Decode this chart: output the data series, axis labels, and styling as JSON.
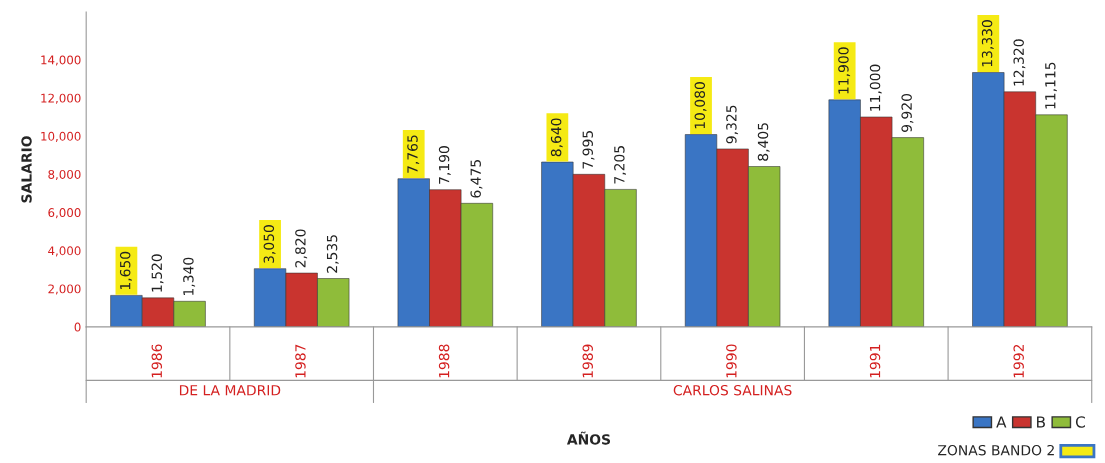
{
  "chart_data": {
    "type": "bar",
    "xlabel": "AÑOS",
    "ylabel": "SALARIO",
    "categories": [
      "1986",
      "1987",
      "1988",
      "1989",
      "1990",
      "1991",
      "1992"
    ],
    "series": [
      {
        "name": "A",
        "color": "#3a75c4",
        "values": [
          1650,
          3050,
          7765,
          8640,
          10080,
          11900,
          13330
        ],
        "value_labels": [
          "1,650",
          "3,050",
          "7,765",
          "8,640",
          "10,080",
          "11,900",
          "13,330"
        ]
      },
      {
        "name": "B",
        "color": "#c9342f",
        "values": [
          1520,
          2820,
          7190,
          7995,
          9325,
          11000,
          12320
        ],
        "value_labels": [
          "1,520",
          "2,820",
          "7,190",
          "7,995",
          "9,325",
          "11,000",
          "12,320"
        ]
      },
      {
        "name": "C",
        "color": "#8fbc3a",
        "values": [
          1340,
          2535,
          6475,
          7205,
          8405,
          9920,
          11115
        ],
        "value_labels": [
          "1,340",
          "2,535",
          "6,475",
          "7,205",
          "8,405",
          "9,920",
          "11,115"
        ]
      }
    ],
    "ylim": [
      0,
      16500
    ],
    "yticks": [
      0,
      {
        "value": 2000,
        "label": "2,000"
      },
      {
        "value": 4000,
        "label": "4,000"
      },
      {
        "value": 6000,
        "label": "6,000"
      },
      {
        "value": 8000,
        "label": "8,000"
      },
      {
        "value": 10000,
        "label": "10,000"
      },
      {
        "value": 12000,
        "label": "12,000"
      },
      {
        "value": 14000,
        "label": "14,000"
      }
    ],
    "grid": false,
    "legend": "bottom right",
    "annotations": [
      "DE LA MADRID",
      "CARLOS SALINAS",
      "ZONAS BANDO 2"
    ]
  }
}
